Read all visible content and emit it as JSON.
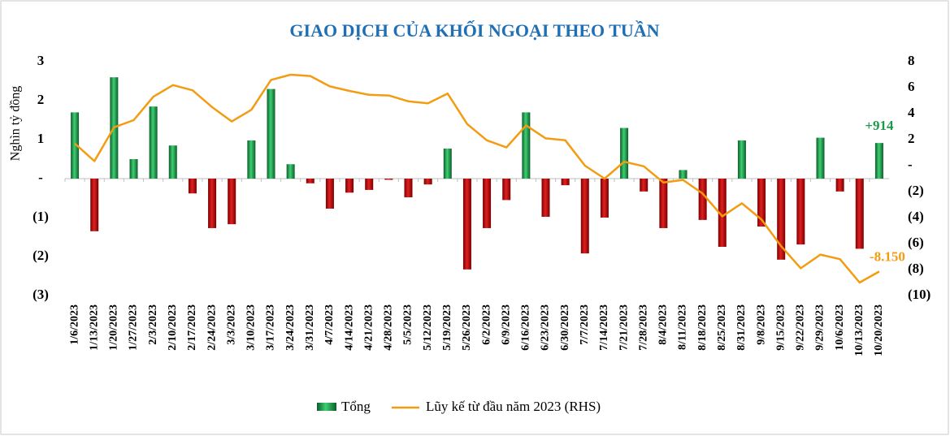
{
  "chart_data": {
    "type": "bar-line",
    "title": "GIAO DỊCH CỦA KHỐI NGOẠI THEO TUẦN",
    "y_label": "Nghìn tỷ đồng",
    "categories": [
      "1/6/2023",
      "1/13/2023",
      "1/20/2023",
      "1/27/2023",
      "2/3/2023",
      "2/10/2023",
      "2/17/2023",
      "2/24/2023",
      "3/3/2023",
      "3/10/2023",
      "3/17/2023",
      "3/24/2023",
      "3/31/2023",
      "4/7/2023",
      "4/14/2023",
      "4/21/2023",
      "4/28/2023",
      "5/5/2023",
      "5/12/2023",
      "5/19/2023",
      "5/26/2023",
      "6/2/2023",
      "6/9/2023",
      "6/16/2023",
      "6/23/2023",
      "6/30/2023",
      "7/7/2023",
      "7/14/2023",
      "7/21/2023",
      "7/28/2023",
      "8/4/2023",
      "8/11/2023",
      "8/18/2023",
      "8/25/2023",
      "8/31/2023",
      "9/8/2023",
      "9/15/2023",
      "9/22/2023",
      "9/29/2023",
      "10/6/2023",
      "10/13/2023",
      "10/20/2023"
    ],
    "series": [
      {
        "name": "Tổng",
        "type": "bar",
        "color": "#1a9a4a",
        "negative_color": "#c00000",
        "values": [
          1.7,
          -1.35,
          2.6,
          0.5,
          1.85,
          0.85,
          -0.38,
          -1.27,
          -1.17,
          0.98,
          2.3,
          0.37,
          -0.12,
          -0.77,
          -0.36,
          -0.29,
          -0.03,
          -0.48,
          -0.15,
          0.77,
          -2.33,
          -1.27,
          -0.55,
          1.7,
          -0.98,
          -0.17,
          -1.92,
          -1.0,
          1.3,
          -0.33,
          -1.27,
          0.22,
          -1.06,
          -1.75,
          0.98,
          -1.23,
          -2.08,
          -1.69,
          1.05,
          -0.33,
          -1.8,
          0.914
        ],
        "value_labels": [
          null,
          null,
          null,
          null,
          null,
          null,
          null,
          null,
          null,
          null,
          null,
          null,
          null,
          null,
          null,
          null,
          null,
          null,
          null,
          null,
          null,
          null,
          null,
          null,
          null,
          null,
          null,
          null,
          null,
          null,
          null,
          null,
          null,
          null,
          null,
          null,
          null,
          null,
          null,
          null,
          null,
          "+914"
        ]
      },
      {
        "name": "Lũy kế từ đầu năm 2023 (RHS)",
        "type": "line",
        "axis": "y2",
        "color": "#f39c12",
        "values": [
          1.7,
          0.35,
          2.95,
          3.5,
          5.3,
          6.2,
          5.8,
          4.5,
          3.4,
          4.3,
          6.6,
          7.0,
          6.9,
          6.1,
          5.75,
          5.45,
          5.4,
          4.95,
          4.8,
          5.55,
          3.2,
          1.95,
          1.4,
          3.1,
          2.1,
          1.95,
          0.0,
          -1.0,
          0.3,
          -0.05,
          -1.3,
          -1.1,
          -2.15,
          -3.9,
          -2.9,
          -4.15,
          -6.2,
          -7.9,
          -6.85,
          -7.2,
          -9.0,
          -8.15
        ],
        "value_labels": [
          null,
          null,
          null,
          null,
          null,
          null,
          null,
          null,
          null,
          null,
          null,
          null,
          null,
          null,
          null,
          null,
          null,
          null,
          null,
          null,
          null,
          null,
          null,
          null,
          null,
          null,
          null,
          null,
          null,
          null,
          null,
          null,
          null,
          null,
          null,
          null,
          null,
          null,
          null,
          null,
          null,
          "-8.150"
        ]
      }
    ],
    "ylim": [
      -3,
      3
    ],
    "yticks": [
      3,
      2,
      1,
      {
        "value": 0,
        "label": "-"
      },
      {
        "value": -1,
        "label": "(1)"
      },
      {
        "value": -2,
        "label": "(2)"
      },
      {
        "value": -3,
        "label": "(3)"
      }
    ],
    "y2lim": [
      -10,
      8
    ],
    "y2ticks": [
      8,
      6,
      4,
      2,
      {
        "value": 0,
        "label": "-"
      },
      {
        "value": -2,
        "label": "(2)"
      },
      {
        "value": -4,
        "label": "(4)"
      },
      {
        "value": -6,
        "label": "(6)"
      },
      {
        "value": -8,
        "label": "(8)"
      },
      {
        "value": -10,
        "label": "(10)"
      }
    ],
    "legend": "bottom"
  }
}
